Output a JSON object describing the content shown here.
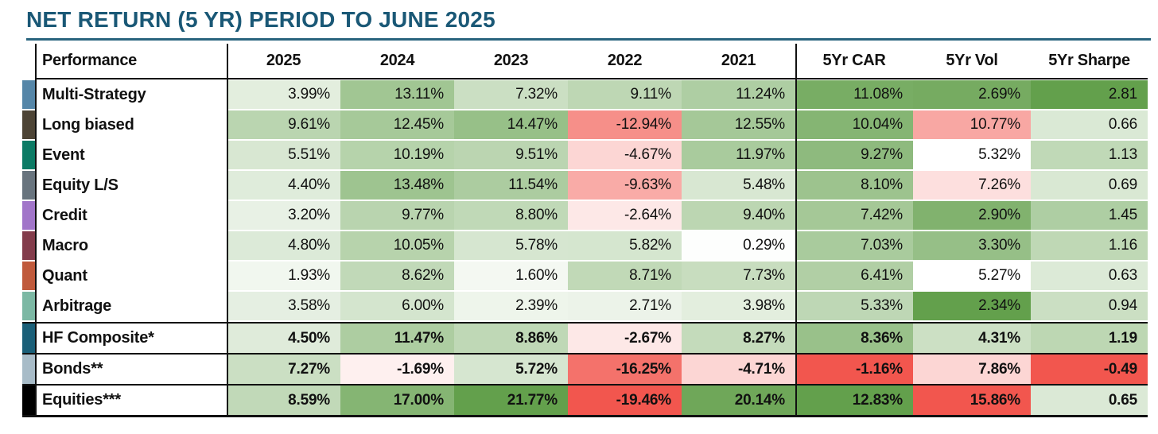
{
  "title": "NET RETURN (5 YR) PERIOD TO JUNE 2025",
  "colors": {
    "title_text": "#1A5876",
    "title_rule": "#29647E",
    "table_border": "#111111",
    "positive_max_green": "#63A04C",
    "negative_max_red": "#F2564E"
  },
  "chart_data": {
    "type": "heatmap",
    "title": "NET RETURN (5 YR) PERIOD TO JUNE 2025",
    "columns": [
      "Performance",
      "2025",
      "2024",
      "2023",
      "2022",
      "2021",
      "5Yr CAR",
      "5Yr Vol",
      "5Yr Sharpe"
    ],
    "rows": [
      {
        "label": "Multi-Strategy",
        "swatch": "#5586A8",
        "bold": false,
        "cells": [
          {
            "v": "3.99%",
            "bg": "#E3EEDE"
          },
          {
            "v": "13.11%",
            "bg": "#A1C693"
          },
          {
            "v": "7.32%",
            "bg": "#CBDFC3"
          },
          {
            "v": "9.11%",
            "bg": "#BED7B4"
          },
          {
            "v": "11.24%",
            "bg": "#AECEA3"
          },
          {
            "v": "11.08%",
            "bg": "#78AD64"
          },
          {
            "v": "2.69%",
            "bg": "#76AB61"
          },
          {
            "v": "2.81",
            "bg": "#63A04C"
          }
        ]
      },
      {
        "label": "Long biased",
        "swatch": "#4D4435",
        "bold": false,
        "cells": [
          {
            "v": "9.61%",
            "bg": "#BAD5B0"
          },
          {
            "v": "12.45%",
            "bg": "#A6C999"
          },
          {
            "v": "14.47%",
            "bg": "#97C088"
          },
          {
            "v": "-12.94%",
            "bg": "#F68F89"
          },
          {
            "v": "12.55%",
            "bg": "#A5C898"
          },
          {
            "v": "10.04%",
            "bg": "#85B573"
          },
          {
            "v": "10.77%",
            "bg": "#F8A7A3"
          },
          {
            "v": "0.66",
            "bg": "#DAE9D5"
          }
        ]
      },
      {
        "label": "Event",
        "swatch": "#0C7B65",
        "bold": false,
        "cells": [
          {
            "v": "5.51%",
            "bg": "#D8E7D2"
          },
          {
            "v": "10.19%",
            "bg": "#B6D3AB"
          },
          {
            "v": "9.51%",
            "bg": "#BBD5B1"
          },
          {
            "v": "-4.67%",
            "bg": "#FCD6D4"
          },
          {
            "v": "11.97%",
            "bg": "#A9CB9D"
          },
          {
            "v": "9.27%",
            "bg": "#8EBA7E"
          },
          {
            "v": "5.32%",
            "bg": "#FFFFFF"
          },
          {
            "v": "1.13",
            "bg": "#C0D9B7"
          }
        ]
      },
      {
        "label": "Equity L/S",
        "swatch": "#68747E",
        "bold": false,
        "cells": [
          {
            "v": "4.40%",
            "bg": "#DFECDB"
          },
          {
            "v": "13.48%",
            "bg": "#9EC490"
          },
          {
            "v": "11.54%",
            "bg": "#ACCCA0"
          },
          {
            "v": "-9.63%",
            "bg": "#F9ABA7"
          },
          {
            "v": "5.48%",
            "bg": "#D8E7D2"
          },
          {
            "v": "8.10%",
            "bg": "#9DC38E"
          },
          {
            "v": "7.26%",
            "bg": "#FDDFDE"
          },
          {
            "v": "0.69",
            "bg": "#D9E8D3"
          }
        ]
      },
      {
        "label": "Credit",
        "swatch": "#A175C9",
        "bold": false,
        "cells": [
          {
            "v": "3.20%",
            "bg": "#E8F1E5"
          },
          {
            "v": "9.77%",
            "bg": "#B9D4AF"
          },
          {
            "v": "8.80%",
            "bg": "#C0D9B7"
          },
          {
            "v": "-2.64%",
            "bg": "#FDE8E7"
          },
          {
            "v": "9.40%",
            "bg": "#BCD6B2"
          },
          {
            "v": "7.42%",
            "bg": "#A5C897"
          },
          {
            "v": "2.90%",
            "bg": "#81B26E"
          },
          {
            "v": "1.45",
            "bg": "#AECEA3"
          }
        ]
      },
      {
        "label": "Macro",
        "swatch": "#833C4B",
        "bold": false,
        "cells": [
          {
            "v": "4.80%",
            "bg": "#DCEAD8"
          },
          {
            "v": "10.05%",
            "bg": "#B7D3AC"
          },
          {
            "v": "5.78%",
            "bg": "#D6E6D0"
          },
          {
            "v": "5.82%",
            "bg": "#D5E6CF"
          },
          {
            "v": "0.29%",
            "bg": "#FDFEFD"
          },
          {
            "v": "7.03%",
            "bg": "#A9CB9D"
          },
          {
            "v": "3.30%",
            "bg": "#96BF87"
          },
          {
            "v": "1.16",
            "bg": "#BFD8B5"
          }
        ]
      },
      {
        "label": "Quant",
        "swatch": "#C05A3C",
        "bold": false,
        "cells": [
          {
            "v": "1.93%",
            "bg": "#F1F7EF"
          },
          {
            "v": "8.62%",
            "bg": "#C1D9B8"
          },
          {
            "v": "1.60%",
            "bg": "#F4F8F2"
          },
          {
            "v": "8.71%",
            "bg": "#C1D9B7"
          },
          {
            "v": "7.73%",
            "bg": "#C8DDBF"
          },
          {
            "v": "6.41%",
            "bg": "#B1CFA5"
          },
          {
            "v": "5.27%",
            "bg": "#FFFFFF"
          },
          {
            "v": "0.63",
            "bg": "#DCEAD7"
          }
        ]
      },
      {
        "label": "Arbitrage",
        "swatch": "#7CB8A4",
        "bold": false,
        "cells": [
          {
            "v": "3.58%",
            "bg": "#E5EFE2"
          },
          {
            "v": "6.00%",
            "bg": "#D4E5CE"
          },
          {
            "v": "2.39%",
            "bg": "#EEF5EB"
          },
          {
            "v": "2.71%",
            "bg": "#ECF3E9"
          },
          {
            "v": "3.98%",
            "bg": "#E3EEDE"
          },
          {
            "v": "5.33%",
            "bg": "#BED7B5"
          },
          {
            "v": "2.34%",
            "bg": "#63A04C"
          },
          {
            "v": "0.94",
            "bg": "#CBDFC3"
          }
        ]
      },
      {
        "label": "HF Composite*",
        "swatch": "#1A5F78",
        "bold": true,
        "cells": [
          {
            "v": "4.50%",
            "bg": "#DFEBDA"
          },
          {
            "v": "11.47%",
            "bg": "#ADCDA1"
          },
          {
            "v": "8.86%",
            "bg": "#BFD8B6"
          },
          {
            "v": "-2.67%",
            "bg": "#FDE8E7"
          },
          {
            "v": "8.27%",
            "bg": "#C4DBBB"
          },
          {
            "v": "8.36%",
            "bg": "#99C18A"
          },
          {
            "v": "4.31%",
            "bg": "#CCE0C4"
          },
          {
            "v": "1.19",
            "bg": "#BDD7B3"
          }
        ]
      },
      {
        "label": "Bonds**",
        "swatch": "#A8BCC8",
        "bold": true,
        "cells": [
          {
            "v": "7.27%",
            "bg": "#CBDFC3"
          },
          {
            "v": "-1.69%",
            "bg": "#FEF0EF"
          },
          {
            "v": "5.72%",
            "bg": "#D6E6D0"
          },
          {
            "v": "-16.25%",
            "bg": "#F4726B"
          },
          {
            "v": "-4.71%",
            "bg": "#FCD6D4"
          },
          {
            "v": "-1.16%",
            "bg": "#F2564E"
          },
          {
            "v": "7.86%",
            "bg": "#FCD6D4"
          },
          {
            "v": "-0.49",
            "bg": "#F2564E"
          }
        ]
      },
      {
        "label": "Equities***",
        "swatch": "#000000",
        "bold": true,
        "cells": [
          {
            "v": "8.59%",
            "bg": "#C1D9B8"
          },
          {
            "v": "17.00%",
            "bg": "#85B573"
          },
          {
            "v": "21.77%",
            "bg": "#63A04C"
          },
          {
            "v": "-19.46%",
            "bg": "#F2564E"
          },
          {
            "v": "20.14%",
            "bg": "#6FA759"
          },
          {
            "v": "12.83%",
            "bg": "#63A04C"
          },
          {
            "v": "15.86%",
            "bg": "#F2564E"
          },
          {
            "v": "0.65",
            "bg": "#DBE9D6"
          }
        ]
      }
    ]
  }
}
